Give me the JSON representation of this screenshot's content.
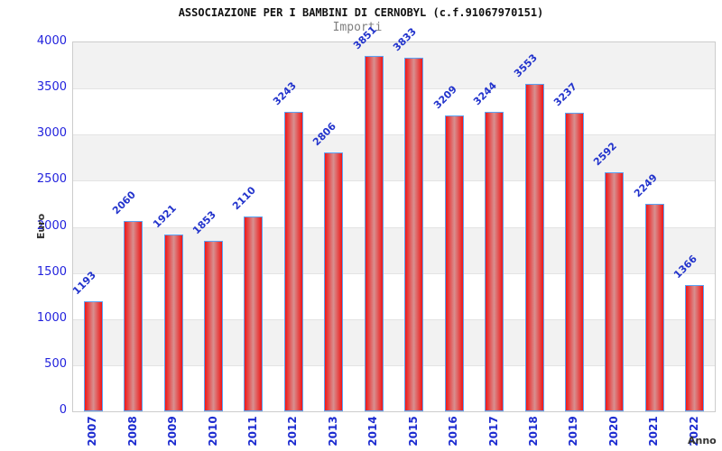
{
  "chart_data": {
    "type": "bar",
    "title": "ASSOCIAZIONE PER I BAMBINI DI CERNOBYL (c.f.91067970151)",
    "subtitle": "Importi",
    "xlabel": "Anno",
    "ylabel": "Euro",
    "categories": [
      "2007",
      "2008",
      "2009",
      "2010",
      "2011",
      "2012",
      "2013",
      "2014",
      "2015",
      "2016",
      "2017",
      "2018",
      "2019",
      "2020",
      "2021",
      "2022"
    ],
    "values": [
      1193,
      2060,
      1921,
      1853,
      2110,
      3243,
      2806,
      3851,
      3833,
      3209,
      3244,
      3553,
      3237,
      2592,
      2249,
      1366
    ],
    "ylim": [
      0,
      4000
    ],
    "yticks": [
      0,
      500,
      1000,
      1500,
      2000,
      2500,
      3000,
      3500,
      4000
    ],
    "grid": "alternating-horizontal-bands",
    "legend": "none",
    "value_label_rotation_deg": -45,
    "x_label_rotation_deg": -90,
    "colors": {
      "bar_border_blue": "#5ba3f5",
      "bar_fill_edge_red": "#ee1c1c",
      "bar_fill_center_pink": "#d89090",
      "y_tick_label_blue": "#2222dd",
      "x_tick_label_blue": "#1c2bd0",
      "value_label_blue": "#2233cc",
      "band_gray": "#f2f2f2",
      "gridline_gray": "#e3e3e3",
      "plot_border_gray": "#cccccc",
      "title_color": "#111111",
      "subtitle_color": "#808080",
      "axis_title_color": "#333333"
    }
  }
}
